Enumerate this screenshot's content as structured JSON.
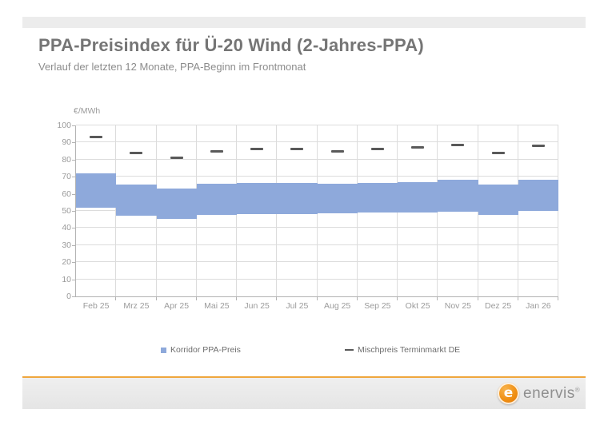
{
  "header": {
    "title": "PPA-Preisindex für Ü-20 Wind (2-Jahres-PPA)",
    "subtitle": "Verlauf der letzten 12 Monate, PPA-Beginn im Frontmonat"
  },
  "chart_data": {
    "type": "bar",
    "subtype": "floating-range-bars-with-dash-markers",
    "title": "",
    "unit_label": "€/MWh",
    "xlabel": "",
    "ylabel": "€/MWh",
    "ylim": [
      0,
      100
    ],
    "ytick_step": 10,
    "grid": true,
    "legend_position": "bottom",
    "categories": [
      "Feb 25",
      "Mrz 25",
      "Apr 25",
      "Mai 25",
      "Jun 25",
      "Jul 25",
      "Aug 25",
      "Sep 25",
      "Okt 25",
      "Nov 25",
      "Dez 25",
      "Jan 26"
    ],
    "series": [
      {
        "name": "Korridor PPA-Preis",
        "type": "range-bar",
        "color": "#8ea9db",
        "low": [
          52,
          47,
          45.5,
          47.5,
          48,
          48,
          48.5,
          49,
          49,
          49.5,
          47.5,
          50
        ],
        "high": [
          72,
          65.5,
          63,
          66,
          66.5,
          66.5,
          66,
          66.5,
          67,
          68,
          65.5,
          68
        ]
      },
      {
        "name": "Mischpreis Terminmarkt DE",
        "type": "dash-marker",
        "color": "#595959",
        "values": [
          93,
          84,
          81,
          85,
          86,
          86,
          85,
          86,
          87,
          88.5,
          84,
          88
        ]
      }
    ]
  },
  "footer": {
    "brand": "enervis",
    "registered_mark": "®",
    "logo_letter": "e"
  },
  "colors": {
    "band_blue": "#8ea9db",
    "marker_gray": "#595959",
    "accent_orange": "#efa73e",
    "bar_gray": "#ececec",
    "grid_gray": "#dcdcdc"
  }
}
